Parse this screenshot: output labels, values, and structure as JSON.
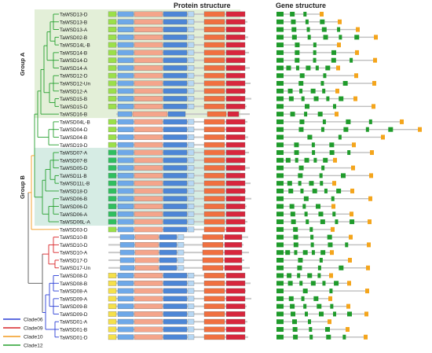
{
  "headers": {
    "protein": "Protein structure",
    "gene": "Gene structure"
  },
  "groups": [
    {
      "label": "Group A",
      "color": "#e3efd8"
    },
    {
      "label": "Group B",
      "color": "#d6ece4"
    }
  ],
  "legend": [
    {
      "label": "Clade06",
      "color": "#2b3fd6"
    },
    {
      "label": "Clade09",
      "color": "#d9262a"
    },
    {
      "label": "Clade10",
      "color": "#f29a1f"
    },
    {
      "label": "Clade12",
      "color": "#26a02f"
    }
  ],
  "motif_colors": {
    "M1": "#d7263d",
    "M2": "#f07040",
    "M3": "#f4a58b",
    "M4": "#b7d7f3",
    "M5": "#6ea8e8",
    "M6": "#4d86d6",
    "M7": "#9be04a",
    "M8": "#2fbf5f",
    "M9": "#f5e04a",
    "M10": "#8f5ad6"
  },
  "genes": [
    {
      "name": "TaWSD13-D",
      "clade": "Clade12",
      "gene_color": "#26a02f"
    },
    {
      "name": "TaWSD13-B",
      "clade": "Clade12",
      "gene_color": "#26a02f"
    },
    {
      "name": "TaWSD13-A",
      "clade": "Clade12",
      "gene_color": "#26a02f"
    },
    {
      "name": "TaWSD02-B",
      "clade": "Clade12",
      "gene_color": "#26a02f"
    },
    {
      "name": "TaWSD14L-B",
      "clade": "Clade12",
      "gene_color": "#26a02f"
    },
    {
      "name": "TaWSD14-B",
      "clade": "Clade12",
      "gene_color": "#26a02f"
    },
    {
      "name": "TaWSD14-D",
      "clade": "Clade12",
      "gene_color": "#26a02f"
    },
    {
      "name": "TaWSD14-A",
      "clade": "Clade12",
      "gene_color": "#26a02f"
    },
    {
      "name": "TaWSD12-D",
      "clade": "Clade12",
      "gene_color": "#26a02f"
    },
    {
      "name": "TaWSD12-Un",
      "clade": "Clade12",
      "gene_color": "#26a02f"
    },
    {
      "name": "TaWSD12-A",
      "clade": "Clade12",
      "gene_color": "#26a02f"
    },
    {
      "name": "TaWSD15-B",
      "clade": "Clade12",
      "gene_color": "#26a02f"
    },
    {
      "name": "TaWSD15-D",
      "clade": "Clade12",
      "gene_color": "#26a02f"
    },
    {
      "name": "TaWSD16-B",
      "clade": "Clade12",
      "gene_color": "#26a02f"
    },
    {
      "name": "TaWSD04L-B",
      "clade": "Clade12",
      "gene_color": "#26a02f"
    },
    {
      "name": "TaWSD04-D",
      "clade": "Clade12",
      "gene_color": "#26a02f"
    },
    {
      "name": "TaWSD04-B",
      "clade": "Clade12",
      "gene_color": "#26a02f"
    },
    {
      "name": "TaWSD19-D",
      "clade": "Clade12",
      "gene_color": "#26a02f"
    },
    {
      "name": "TaWSD07-A",
      "clade": "Clade12",
      "gene_color": "#26a02f"
    },
    {
      "name": "TaWSD07-B",
      "clade": "Clade12",
      "gene_color": "#26a02f"
    },
    {
      "name": "TaWSD05-D",
      "clade": "Clade12",
      "gene_color": "#26a02f"
    },
    {
      "name": "TaWSD11-B",
      "clade": "Clade12",
      "gene_color": "#26a02f"
    },
    {
      "name": "TaWSD11L-B",
      "clade": "Clade12",
      "gene_color": "#26a02f"
    },
    {
      "name": "TaWSD18-D",
      "clade": "Clade12",
      "gene_color": "#26a02f"
    },
    {
      "name": "TaWSD06-B",
      "clade": "Clade12",
      "gene_color": "#26a02f"
    },
    {
      "name": "TaWSD06-D",
      "clade": "Clade12",
      "gene_color": "#26a02f"
    },
    {
      "name": "TaWSD06-A",
      "clade": "Clade12",
      "gene_color": "#26a02f"
    },
    {
      "name": "TaWSD06L-A",
      "clade": "Clade12",
      "gene_color": "#26a02f"
    },
    {
      "name": "TaWSD03-D",
      "clade": "Clade10",
      "gene_color": "#f29a1f"
    },
    {
      "name": "TaWSD10-B",
      "clade": "Clade09",
      "gene_color": "#d9262a"
    },
    {
      "name": "TaWSD10-D",
      "clade": "Clade09",
      "gene_color": "#d9262a"
    },
    {
      "name": "TaWSD10-A",
      "clade": "Clade09",
      "gene_color": "#d9262a"
    },
    {
      "name": "TaWSD17-D",
      "clade": "Clade09",
      "gene_color": "#d9262a"
    },
    {
      "name": "TaWSD17-Un",
      "clade": "Clade09",
      "gene_color": "#d9262a"
    },
    {
      "name": "TaWSD08-D",
      "clade": "Clade06",
      "gene_color": "#2b3fd6"
    },
    {
      "name": "TaWSD08-B",
      "clade": "Clade06",
      "gene_color": "#2b3fd6"
    },
    {
      "name": "TaWSD08-A",
      "clade": "Clade06",
      "gene_color": "#2b3fd6"
    },
    {
      "name": "TaWSD09-A",
      "clade": "Clade06",
      "gene_color": "#2b3fd6"
    },
    {
      "name": "TaWSD09-B",
      "clade": "Clade06",
      "gene_color": "#2b3fd6"
    },
    {
      "name": "TaWSD09-D",
      "clade": "Clade06",
      "gene_color": "#2b3fd6"
    },
    {
      "name": "TaWSD01-A",
      "clade": "Clade06",
      "gene_color": "#2b3fd6"
    },
    {
      "name": "TaWSD01-B",
      "clade": "Clade06",
      "gene_color": "#2b3fd6"
    },
    {
      "name": "TaWSD01-D",
      "clade": "Clade06",
      "gene_color": "#2b3fd6"
    }
  ]
}
